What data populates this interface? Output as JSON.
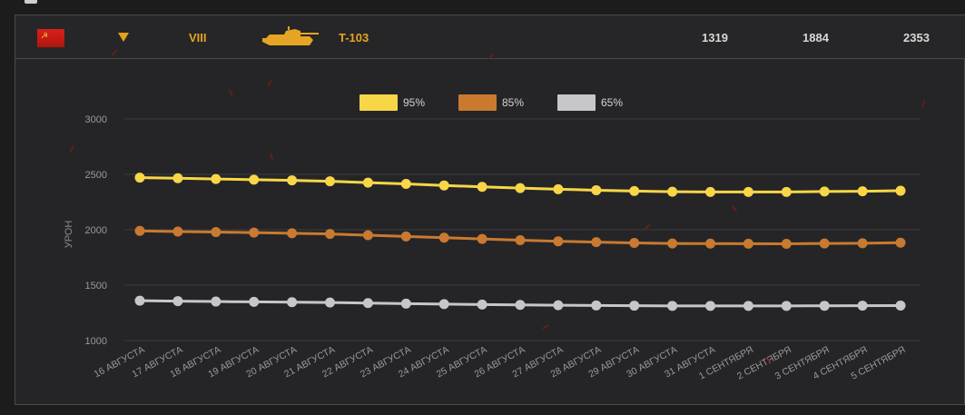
{
  "header": {
    "flag_icon": "ussr-flag-icon",
    "dropdown_icon": "triangle-down-icon",
    "tier": "VIII",
    "tank_icon": "tank-silhouette-icon",
    "tank_name": "T-103",
    "values": [
      "1319",
      "1884",
      "2353"
    ],
    "accent_color": "#e5a423"
  },
  "chart_data": {
    "type": "line",
    "ylabel": "УРОН",
    "xlabel": "",
    "ylim": [
      1000,
      3000
    ],
    "yticks": [
      1000,
      1500,
      2000,
      2500,
      3000
    ],
    "grid": true,
    "legend_position": "top-center",
    "categories": [
      "16 АВГУСТА",
      "17 АВГУСТА",
      "18 АВГУСТА",
      "19 АВГУСТА",
      "20 АВГУСТА",
      "21 АВГУСТА",
      "22 АВГУСТА",
      "23 АВГУСТА",
      "24 АВГУСТА",
      "25 АВГУСТА",
      "26 АВГУСТА",
      "27 АВГУСТА",
      "28 АВГУСТА",
      "29 АВГУСТА",
      "30 АВГУСТА",
      "31 АВГУСТА",
      "1 СЕНТЯБРЯ",
      "2 СЕНТЯБРЯ",
      "3 СЕНТЯБРЯ",
      "4 СЕНТЯБРЯ",
      "5 СЕНТЯБРЯ"
    ],
    "series": [
      {
        "name": "95%",
        "color": "#f7d648",
        "values": [
          2470,
          2465,
          2458,
          2452,
          2446,
          2438,
          2425,
          2414,
          2400,
          2387,
          2376,
          2366,
          2357,
          2349,
          2343,
          2341,
          2341,
          2341,
          2345,
          2347,
          2352
        ]
      },
      {
        "name": "85%",
        "color": "#c97a30",
        "values": [
          1990,
          1984,
          1979,
          1974,
          1968,
          1962,
          1951,
          1940,
          1928,
          1917,
          1906,
          1896,
          1888,
          1881,
          1876,
          1875,
          1874,
          1873,
          1876,
          1878,
          1883
        ]
      },
      {
        "name": "65%",
        "color": "#c7c7c9",
        "values": [
          1360,
          1356,
          1352,
          1349,
          1346,
          1343,
          1338,
          1333,
          1329,
          1325,
          1322,
          1319,
          1317,
          1315,
          1313,
          1313,
          1313,
          1313,
          1314,
          1315,
          1316
        ]
      }
    ]
  }
}
